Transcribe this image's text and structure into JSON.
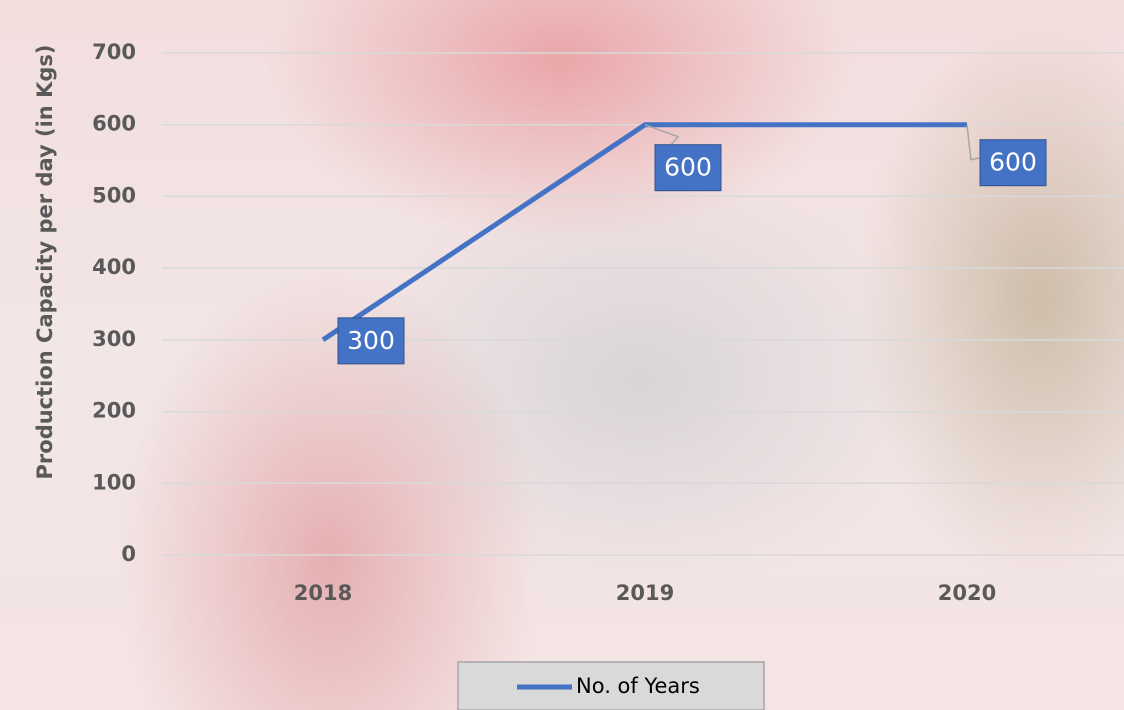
{
  "chart_data": {
    "type": "line",
    "y_label": "Production Capacity per day (in Kgs)",
    "categories": [
      "2018",
      "2019",
      "2020"
    ],
    "series": [
      {
        "name": "No. of Years",
        "color": "#4472c4",
        "values": [
          300,
          600,
          600
        ]
      }
    ],
    "ylim": [
      0,
      700
    ],
    "yticks": [
      0,
      100,
      200,
      300,
      400,
      500,
      600,
      700
    ],
    "grid": true,
    "legend": "bottom"
  }
}
